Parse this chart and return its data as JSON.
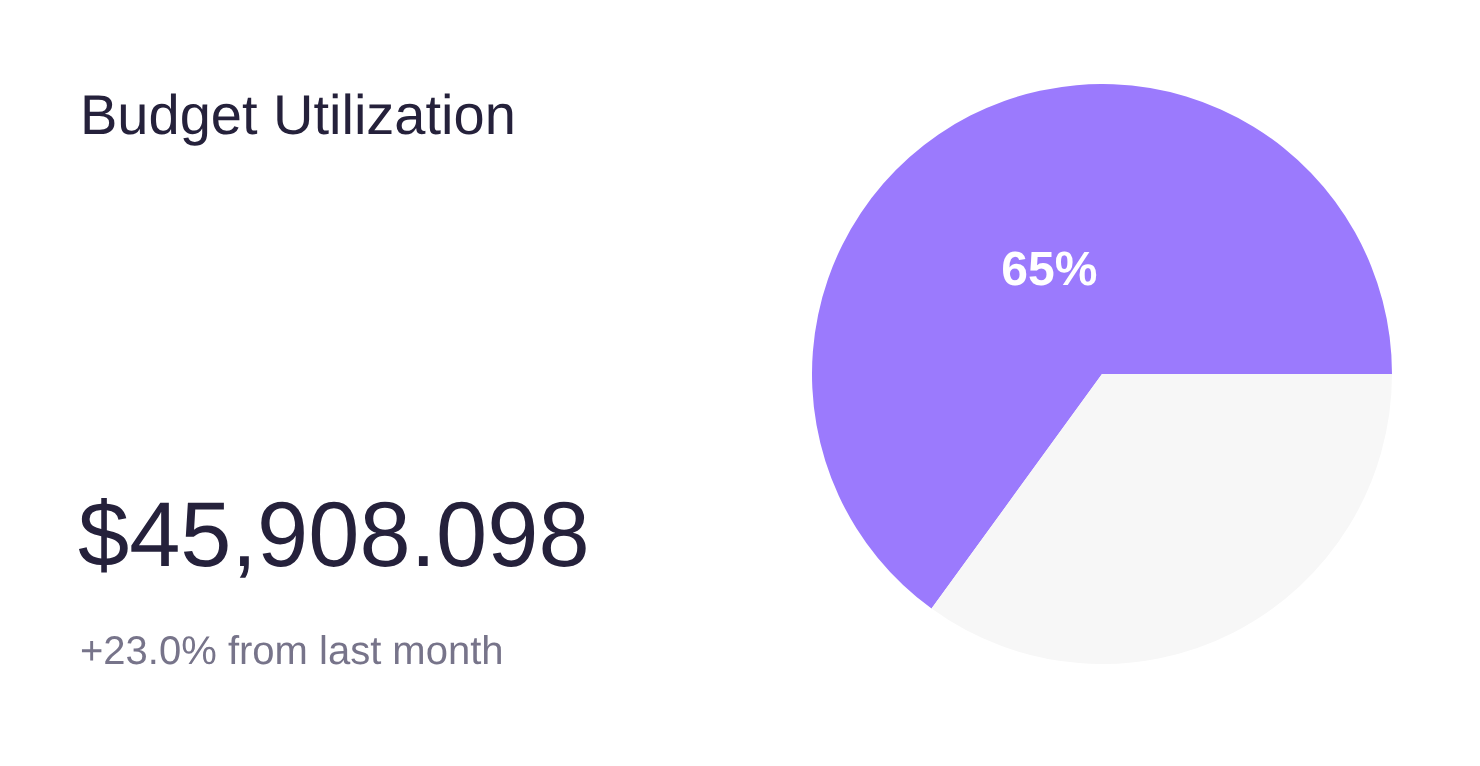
{
  "chart_data": {
    "type": "pie",
    "title": "Budget Utilization",
    "annotations": [
      "$45,908.098",
      "+23.0% from last month"
    ],
    "categories": [
      null,
      null
    ],
    "values": [
      65,
      35
    ],
    "colors": [
      "#9b7afd",
      "#f7f7f7"
    ],
    "value_labels": [
      "65%",
      null
    ],
    "legend": false
  }
}
